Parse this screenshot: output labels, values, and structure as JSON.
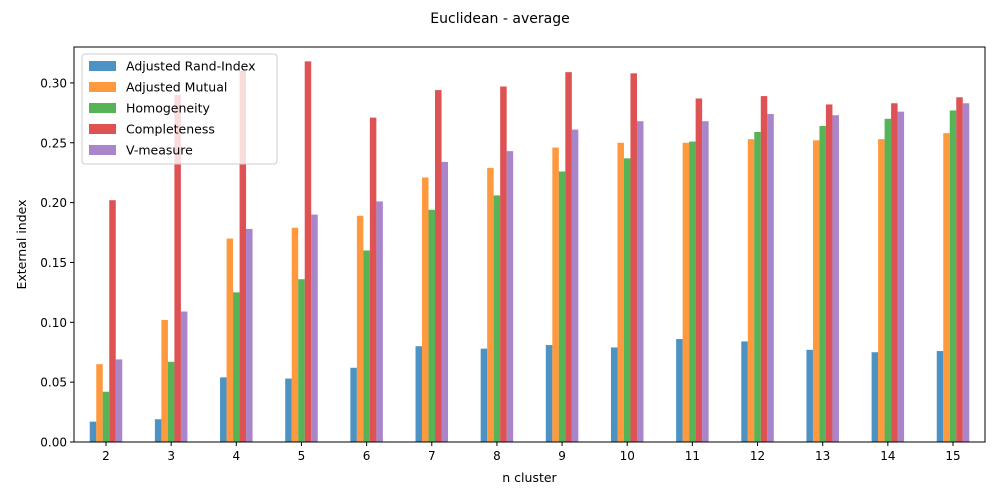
{
  "chart_data": {
    "type": "bar",
    "title": "Euclidean - average",
    "xlabel": "n cluster",
    "ylabel": "External index",
    "categories": [
      "2",
      "3",
      "4",
      "5",
      "6",
      "7",
      "8",
      "9",
      "10",
      "11",
      "12",
      "13",
      "14",
      "15"
    ],
    "ylim": [
      0,
      0.33
    ],
    "yticks": [
      "0.00",
      "0.05",
      "0.10",
      "0.15",
      "0.20",
      "0.25",
      "0.30"
    ],
    "grid": false,
    "legend_position": "upper-left",
    "series": [
      {
        "name": "Adjusted Rand-Index",
        "color": "#1f77b4",
        "values": [
          0.017,
          0.019,
          0.054,
          0.053,
          0.062,
          0.08,
          0.078,
          0.081,
          0.079,
          0.086,
          0.084,
          0.077,
          0.075,
          0.076
        ]
      },
      {
        "name": "Adjusted Mutual",
        "color": "#ff7f0e",
        "values": [
          0.065,
          0.102,
          0.17,
          0.179,
          0.189,
          0.221,
          0.229,
          0.246,
          0.25,
          0.25,
          0.253,
          0.252,
          0.253,
          0.258
        ]
      },
      {
        "name": "Homogeneity",
        "color": "#2ca02c",
        "values": [
          0.042,
          0.067,
          0.125,
          0.136,
          0.16,
          0.194,
          0.206,
          0.226,
          0.237,
          0.251,
          0.259,
          0.264,
          0.27,
          0.277
        ]
      },
      {
        "name": "Completeness",
        "color": "#d62728",
        "values": [
          0.202,
          0.29,
          0.31,
          0.318,
          0.271,
          0.294,
          0.297,
          0.309,
          0.308,
          0.287,
          0.289,
          0.282,
          0.283,
          0.288
        ]
      },
      {
        "name": "V-measure",
        "color": "#9467bd",
        "values": [
          0.069,
          0.109,
          0.178,
          0.19,
          0.201,
          0.234,
          0.243,
          0.261,
          0.268,
          0.268,
          0.274,
          0.273,
          0.276,
          0.283
        ]
      }
    ]
  }
}
